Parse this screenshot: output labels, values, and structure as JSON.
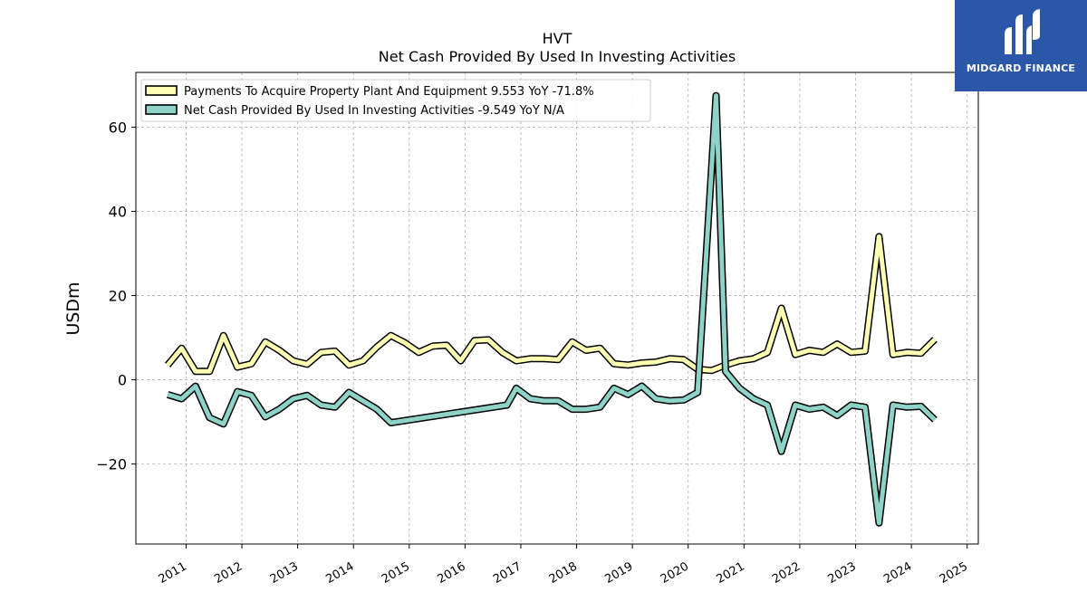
{
  "chart_data": {
    "type": "line",
    "title": "HVT",
    "subtitle": "Net Cash Provided By Used In Investing Activities",
    "ylabel": "USDm",
    "xlabel": "",
    "xlim": [
      2010.1,
      2025.2
    ],
    "ylim": [
      -39,
      73
    ],
    "x_ticks": [
      "2011",
      "2012",
      "2013",
      "2014",
      "2015",
      "2016",
      "2017",
      "2018",
      "2019",
      "2020",
      "2021",
      "2022",
      "2023",
      "2024",
      "2025"
    ],
    "y_ticks": [
      -20,
      0,
      20,
      40,
      60
    ],
    "grid": true,
    "legend_position": "top-left",
    "series": [
      {
        "name": "Payments To Acquire Property Plant And Equipment  9.553 YoY -71.8%",
        "color": "#ffffb3",
        "x": [
          2010.67,
          2010.92,
          2011.17,
          2011.42,
          2011.67,
          2011.92,
          2012.17,
          2012.42,
          2012.67,
          2012.92,
          2013.17,
          2013.42,
          2013.67,
          2013.92,
          2014.17,
          2014.42,
          2014.67,
          2014.92,
          2015.17,
          2015.42,
          2015.67,
          2015.92,
          2016.17,
          2016.42,
          2016.67,
          2016.92,
          2017.17,
          2017.42,
          2017.67,
          2017.92,
          2018.17,
          2018.42,
          2018.67,
          2018.92,
          2019.17,
          2019.42,
          2019.67,
          2019.92,
          2020.17,
          2020.42,
          2020.67,
          2020.92,
          2021.17,
          2021.42,
          2021.67,
          2021.92,
          2022.17,
          2022.42,
          2022.67,
          2022.92,
          2023.17,
          2023.42,
          2023.67,
          2023.92,
          2024.17,
          2024.42
        ],
        "values": [
          3.5,
          7.5,
          2.0,
          2.0,
          10.5,
          3.0,
          3.8,
          9.0,
          7.0,
          4.5,
          3.7,
          6.5,
          6.8,
          3.5,
          4.5,
          7.8,
          10.5,
          8.8,
          6.5,
          8.0,
          8.2,
          4.5,
          9.3,
          9.5,
          6.5,
          4.5,
          5.0,
          5.0,
          4.8,
          9.0,
          7.0,
          7.5,
          3.8,
          3.5,
          4.0,
          4.2,
          5.0,
          4.8,
          2.5,
          2.2,
          3.5,
          4.5,
          5.0,
          6.5,
          17.0,
          6.0,
          7.0,
          6.5,
          8.5,
          6.5,
          6.8,
          34.0,
          6.0,
          6.5,
          6.3,
          9.6
        ]
      },
      {
        "name": "Net Cash Provided By Used In Investing Activities  -9.549 YoY N/A",
        "color": "#8dd3c7",
        "x": [
          2010.67,
          2010.92,
          2011.17,
          2011.42,
          2011.67,
          2011.92,
          2012.17,
          2012.42,
          2012.67,
          2012.92,
          2013.17,
          2013.42,
          2013.67,
          2013.92,
          2014.17,
          2014.42,
          2014.67,
          2016.75,
          2016.92,
          2017.17,
          2017.42,
          2017.67,
          2017.92,
          2018.17,
          2018.42,
          2018.67,
          2018.92,
          2019.17,
          2019.42,
          2019.67,
          2019.92,
          2020.17,
          2020.5,
          2020.67,
          2020.92,
          2021.17,
          2021.42,
          2021.67,
          2021.92,
          2022.17,
          2022.42,
          2022.67,
          2022.92,
          2023.17,
          2023.42,
          2023.67,
          2023.92,
          2024.17,
          2024.42
        ],
        "values": [
          -3.5,
          -4.5,
          -1.5,
          -9.0,
          -10.5,
          -2.8,
          -3.7,
          -8.8,
          -7.0,
          -4.5,
          -3.7,
          -6.0,
          -6.5,
          -3.0,
          -5.0,
          -7.0,
          -10.2,
          -6.0,
          -2.0,
          -4.5,
          -5.0,
          -5.0,
          -7.0,
          -7.0,
          -6.5,
          -2.0,
          -3.5,
          -1.5,
          -4.5,
          -5.0,
          -4.8,
          -3.0,
          67.5,
          2.0,
          -2.0,
          -4.5,
          -6.0,
          -17.0,
          -6.0,
          -7.0,
          -6.5,
          -8.5,
          -6.0,
          -6.5,
          -34.0,
          -6.0,
          -6.5,
          -6.3,
          -9.5
        ]
      }
    ]
  },
  "logo": {
    "text": "MIDGARD FINANCE",
    "color": "#2a57a8"
  }
}
